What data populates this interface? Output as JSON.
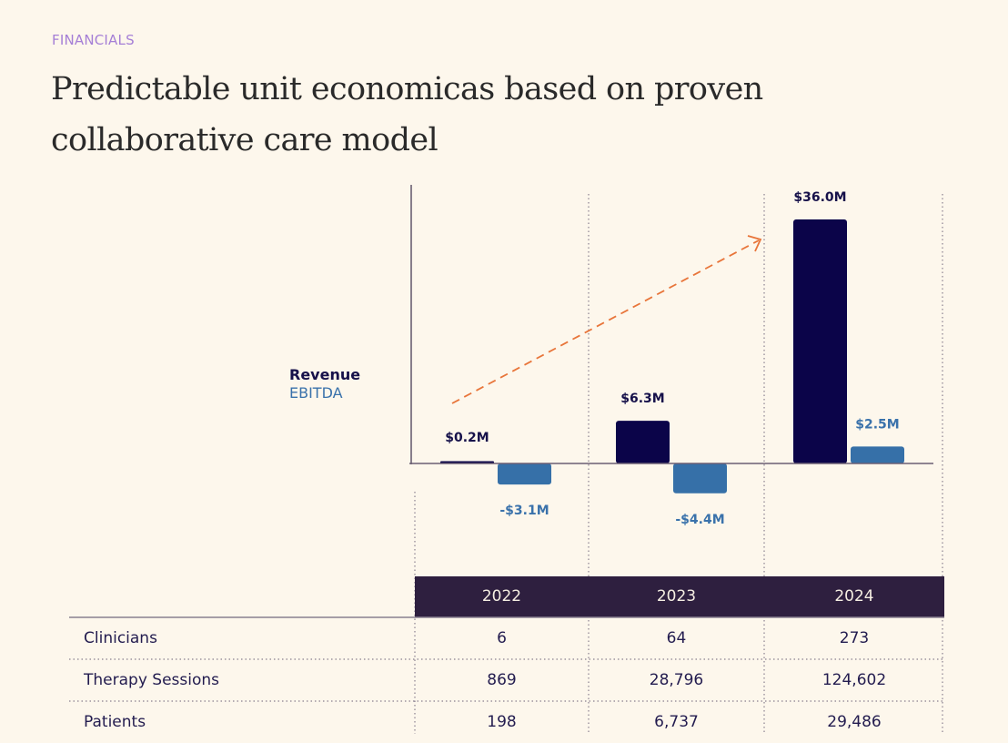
{
  "header": {
    "eyebrow": "FINANCIALS",
    "title_line1": "Predictable unit economicas based on proven",
    "title_line2": "collaborative care model"
  },
  "colors": {
    "background": "#fdf7ec",
    "revenue": "#0b0449",
    "ebitda": "#3670a8",
    "trend_arrow": "#e8753a",
    "table_header": "#2e1f3f",
    "eyebrow": "#a57fd6"
  },
  "chart_data": {
    "type": "bar",
    "title": "",
    "xlabel": "",
    "ylabel": "",
    "categories": [
      "2022",
      "2023",
      "2024"
    ],
    "series": [
      {
        "name": "Revenue",
        "values": [
          0.2,
          6.3,
          36.0
        ],
        "labels": [
          "$0.2M",
          "$6.3M",
          "$36.0M"
        ]
      },
      {
        "name": "EBITDA",
        "values": [
          -3.1,
          -4.4,
          2.5
        ],
        "labels": [
          "-$3.1M",
          "-$4.4M",
          "$2.5M"
        ]
      }
    ],
    "units": "$M",
    "ylim": [
      -6,
      40
    ],
    "legend": [
      "Revenue",
      "EBITDA"
    ],
    "legend_position": "left",
    "grid": false,
    "annotation": "upward trend arrow"
  },
  "table": {
    "columns": [
      "2022",
      "2023",
      "2024"
    ],
    "rows": [
      {
        "label": "Clinicians",
        "values": [
          "6",
          "64",
          "273"
        ]
      },
      {
        "label": "Therapy Sessions",
        "values": [
          "869",
          "28,796",
          "124,602"
        ]
      },
      {
        "label": "Patients",
        "values": [
          "198",
          "6,737",
          "29,486"
        ]
      }
    ]
  }
}
